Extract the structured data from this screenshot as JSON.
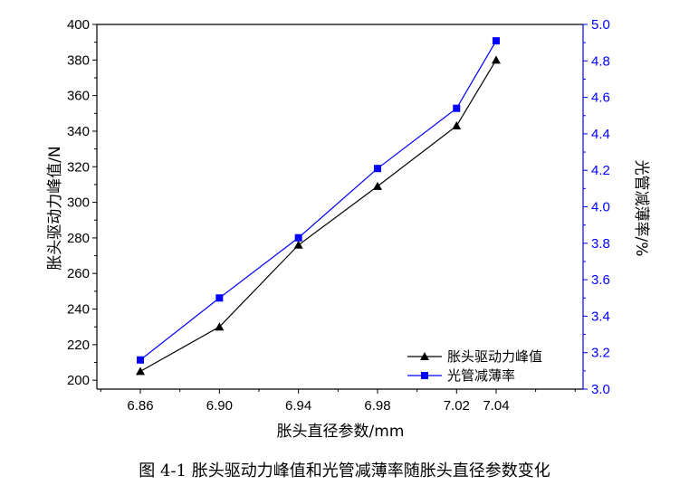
{
  "chart_data": {
    "type": "line",
    "caption": "图 4-1  胀头驱动力峰值和光管减薄率随胀头直径参数变化",
    "xlabel": "胀头直径参数/mm",
    "ylabel_left": "胀头驱动力峰值/N",
    "ylabel_right": "光管减薄率/%",
    "x": [
      6.86,
      6.9,
      6.94,
      6.98,
      7.02,
      7.04
    ],
    "x_tick_labels": [
      "6.86",
      "6.90",
      "6.94",
      "6.98",
      "7.02",
      "7.04"
    ],
    "y_left_ticks": [
      "200",
      "220",
      "240",
      "260",
      "280",
      "300",
      "320",
      "340",
      "360",
      "380",
      "400"
    ],
    "y_right_ticks": [
      "3.0",
      "3.2",
      "3.4",
      "3.6",
      "3.8",
      "4.0",
      "4.2",
      "4.4",
      "4.6",
      "4.8",
      "5.0"
    ],
    "ylim_left": [
      195,
      400
    ],
    "ylim_right": [
      3.0,
      5.0
    ],
    "series": [
      {
        "name": "胀头驱动力峰值",
        "axis": "left",
        "color": "#000000",
        "marker": "triangle",
        "values": [
          205,
          230,
          276,
          309,
          343,
          380
        ]
      },
      {
        "name": "光管减薄率",
        "axis": "right",
        "color": "#0000ff",
        "marker": "square",
        "values": [
          3.16,
          3.5,
          3.83,
          4.21,
          4.54,
          4.91
        ]
      }
    ],
    "grid": false,
    "legend_position": "bottom-right"
  }
}
